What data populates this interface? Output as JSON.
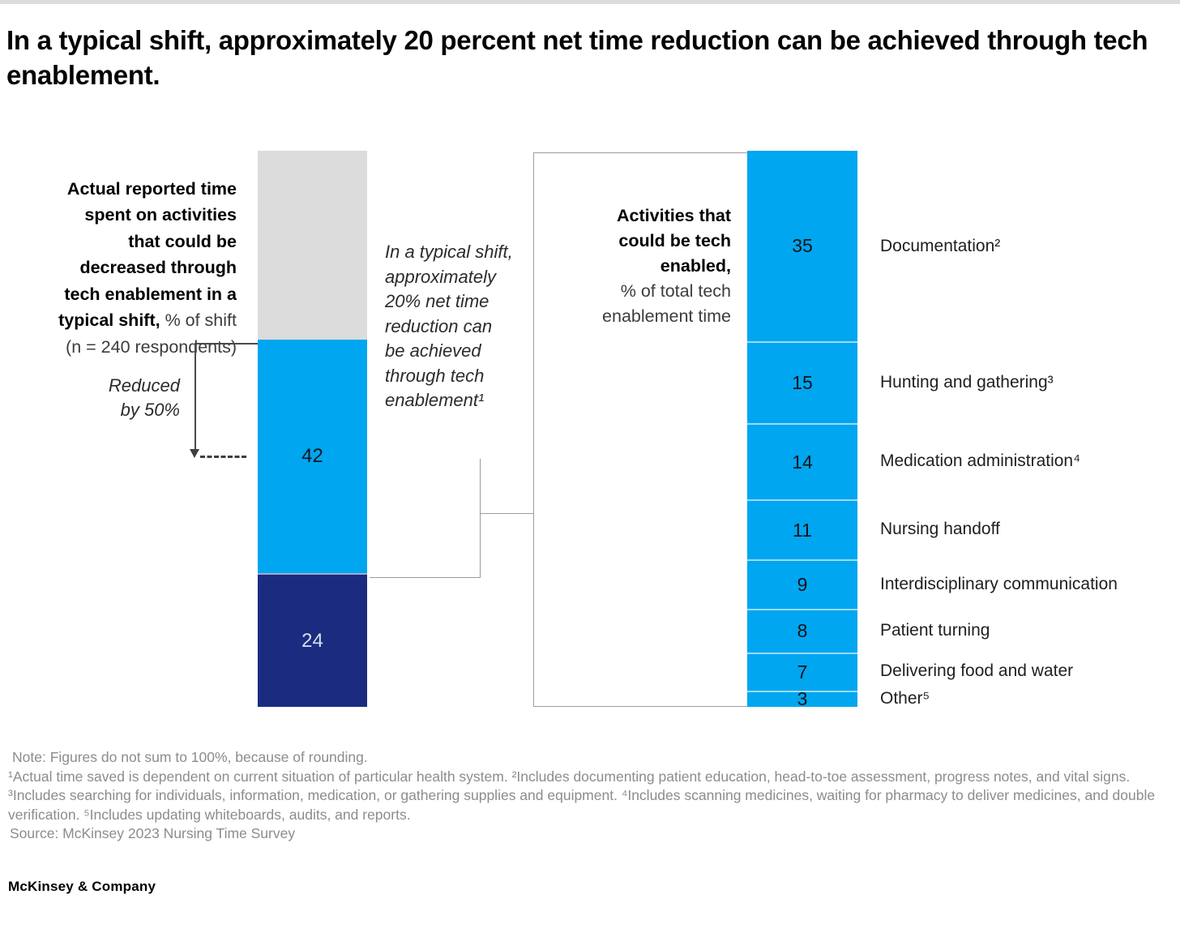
{
  "title": "In a typical shift, approximately 20 percent net time reduction can be achieved through tech enablement.",
  "left_chart_label": {
    "bold": "Actual reported time\nspent on activities\nthat could be\ndecreased through\ntech enablement in a\ntypical shift,",
    "regular": " % of shift\n(n = 240 respondents)"
  },
  "reduced_note": "Reduced\nby 50%",
  "middle_note": "In a typical shift,\napproximately\n20% net time\nreduction can\nbe achieved\nthrough tech\nenablement¹",
  "right_chart_label": {
    "bold": "Activities that\ncould be tech\nenabled,",
    "regular": "\n% of total tech\nenablement time"
  },
  "notes": {
    "note": "Note: Figures do not sum to 100%, because of rounding.",
    "footnotes": "¹Actual time saved is dependent on current situation of particular health system. ²Includes documenting patient education, head-to-toe assessment, progress notes, and vital signs. ³Includes searching for individuals, information, medication, or gathering supplies and equipment. ⁴Includes scanning medicines, waiting for pharmacy to deliver medicines, and double verification. ⁵Includes updating whiteboards, audits, and reports.",
    "source": "Source: McKinsey 2023 Nursing Time Survey"
  },
  "footer": "McKinsey & Company",
  "colors": {
    "light_blue": "#00A6EF",
    "navy": "#1B2C80",
    "gray": "#DCDCDC",
    "value_light": "#D3E0F0",
    "value_dark": "#101820"
  },
  "chart_data": [
    {
      "type": "bar",
      "name": "actual-reported-time-stacked-bar",
      "title": "Actual reported time spent on activities that could be decreased through tech enablement in a typical shift, % of shift (n = 240 respondents)",
      "stacked": true,
      "ylim": [
        0,
        100
      ],
      "segments": [
        {
          "value": 34,
          "value_shown": false,
          "color": "#DCDCDC",
          "text_color": "#101820",
          "separator": false
        },
        {
          "value": 42,
          "value_shown": true,
          "color": "#00A6EF",
          "text_color": "#101820",
          "separator": false
        },
        {
          "value": 24,
          "value_shown": true,
          "color": "#1B2C80",
          "text_color": "#D3E0F0",
          "separator": true
        }
      ],
      "annotations": [
        "Reduced by 50%",
        "In a typical shift, approximately 20% net time reduction can be achieved through tech enablement¹"
      ]
    },
    {
      "type": "bar",
      "name": "tech-enablement-activities-stacked-bar",
      "title": "Activities that could be tech enabled, % of total tech enablement time",
      "stacked": true,
      "total_units": 102,
      "categories": [
        "Documentation²",
        "Hunting and gathering³",
        "Medication administration⁴",
        "Nursing handoff",
        "Interdisciplinary communication",
        "Patient turning",
        "Delivering food and water",
        "Other⁵"
      ],
      "values": [
        35,
        15,
        14,
        11,
        9,
        8,
        7,
        3
      ],
      "color": "#00A6EF"
    }
  ]
}
